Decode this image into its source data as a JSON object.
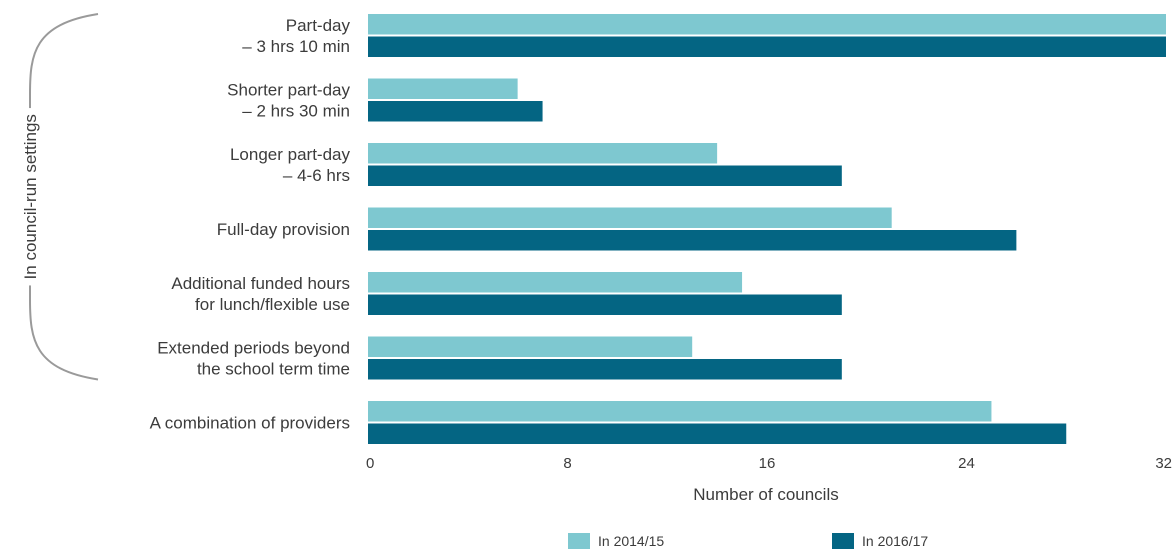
{
  "chart_data": {
    "type": "bar",
    "orientation": "horizontal",
    "categories": [
      [
        "Part-day",
        "– 3 hrs 10 min"
      ],
      [
        "Shorter part-day",
        "– 2 hrs 30 min"
      ],
      [
        "Longer part-day",
        "– 4-6 hrs"
      ],
      [
        "Full-day provision"
      ],
      [
        "Additional funded hours",
        "for lunch/flexible use"
      ],
      [
        "Extended periods beyond",
        "the school term time"
      ],
      [
        "A combination of providers"
      ]
    ],
    "series": [
      {
        "name": "In 2014/15",
        "color": "#7ec8d0",
        "values": [
          32,
          6,
          14,
          21,
          15,
          13,
          25
        ]
      },
      {
        "name": "In 2016/17",
        "color": "#046583",
        "values": [
          32,
          7,
          19,
          26,
          19,
          19,
          28
        ]
      }
    ],
    "xlabel": "Number of councils",
    "xlim": [
      0,
      32
    ],
    "xticks": [
      0,
      8,
      16,
      24,
      32
    ],
    "group_annotation": {
      "text": "In council-run settings",
      "categories": [
        0,
        1,
        2,
        3,
        4,
        5
      ]
    },
    "legend_position": "bottom",
    "grid": false
  }
}
